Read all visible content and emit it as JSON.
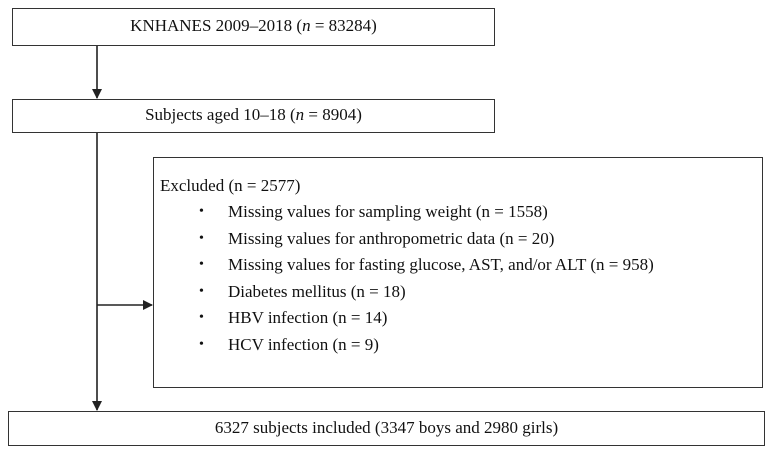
{
  "nodes": {
    "source": {
      "prefix": "KNHANES 2009–2018 (",
      "n_var": "n",
      "suffix": " = 83284)"
    },
    "aged": {
      "prefix": "Subjects aged 10–18 (",
      "n_var": "n",
      "suffix": " = 8904)"
    },
    "excluded": {
      "title": "Excluded (n = 2577)",
      "bullet": "•",
      "items": [
        "Missing values for sampling weight (n = 1558)",
        "Missing values for anthropometric data (n = 20)",
        "Missing values for fasting glucose, AST, and/or ALT (n = 958)",
        "Diabetes mellitus (n = 18)",
        "HBV infection (n = 14)",
        "HCV infection (n = 9)"
      ]
    },
    "included": {
      "label": "6327 subjects included (3347 boys and 2980 girls)"
    }
  },
  "colors": {
    "line": "#222222",
    "border": "#333333"
  }
}
